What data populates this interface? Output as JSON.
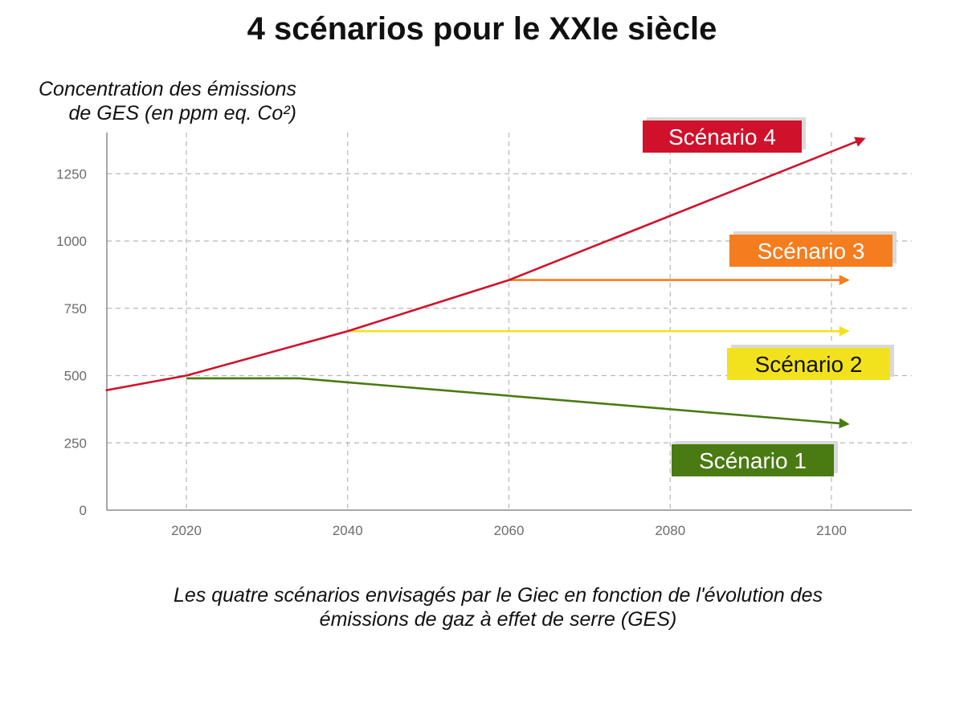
{
  "chart_data": {
    "type": "line",
    "title": "4 scénarios pour le XXIe siècle",
    "ylabel_lines": [
      "Concentration des émissions",
      "de GES (en ppm eq. Co²)"
    ],
    "caption_lines": [
      "Les quatre scénarios envisagés par le Giec en fonction de l'évolution des",
      "émissions de gaz à effet de serre (GES)"
    ],
    "xlim": [
      2010,
      2110
    ],
    "ylim": [
      0,
      1400
    ],
    "x_ticks": [
      "2020",
      "2040",
      "2060",
      "2080",
      "2100"
    ],
    "y_ticks": [
      "0",
      "250",
      "500",
      "750",
      "1000",
      "1250"
    ],
    "grid": true,
    "series": [
      {
        "name": "Scénario 4",
        "color": "#d0112b",
        "points": [
          [
            2010,
            445
          ],
          [
            2020,
            500
          ],
          [
            2040,
            665
          ],
          [
            2060,
            855
          ],
          [
            2104,
            1380
          ]
        ]
      },
      {
        "name": "Scénario 3",
        "color": "#f47d1f",
        "points": [
          [
            2060,
            855
          ],
          [
            2102,
            855
          ]
        ]
      },
      {
        "name": "Scénario 2",
        "color": "#f2e21d",
        "points": [
          [
            2040,
            665
          ],
          [
            2102,
            665
          ]
        ]
      },
      {
        "name": "Scénario 1",
        "color": "#4a7a12",
        "points": [
          [
            2020,
            490
          ],
          [
            2034,
            490
          ],
          [
            2040,
            475
          ],
          [
            2102,
            320
          ]
        ]
      }
    ],
    "labels": [
      {
        "text": "Scénario 4",
        "bg": "#d0112b",
        "fg": "#ffffff",
        "anchor": [
          2000,
          1390
        ]
      },
      {
        "text": "Scénario 3",
        "bg": "#f47d1f",
        "fg": "#ffffff",
        "anchor": [
          2000,
          970
        ]
      },
      {
        "text": "Scénario 2",
        "bg": "#f2e21d",
        "fg": "#111111",
        "anchor": [
          2000,
          545
        ]
      },
      {
        "text": "Scénario 1",
        "bg": "#4a7a12",
        "fg": "#ffffff",
        "anchor": [
          2000,
          180
        ]
      }
    ]
  }
}
